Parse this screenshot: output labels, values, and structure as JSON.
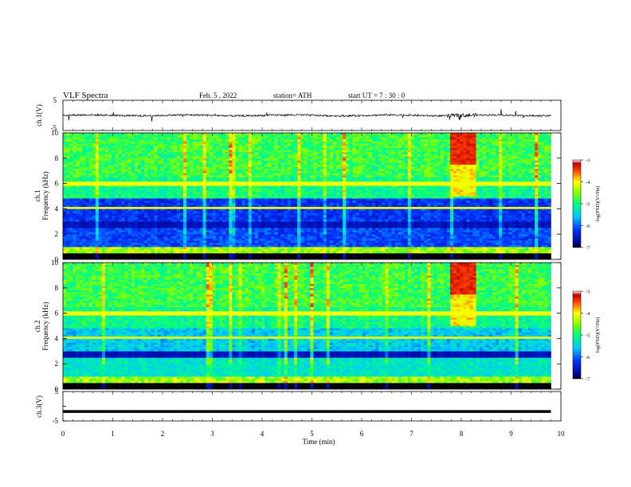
{
  "header": {
    "title": "VLF  Spectra",
    "date": "Feb. 5  , 2022",
    "station": "station= ATH",
    "start": "start  UT  =    7  : 30 : 0"
  },
  "chart_data": [
    {
      "type": "line",
      "name": "ch1-waveform",
      "ylabel": "ch.1(V)",
      "ylim": [
        -5,
        5
      ],
      "yticks": [
        5,
        -5
      ],
      "xlim": [
        0,
        10
      ],
      "trace_extent_min": 9.8
    },
    {
      "type": "heatmap",
      "name": "ch1-spectrogram",
      "ylabel": "ch.1\nFrequency (kHz)",
      "ylabel_lines": [
        "ch.1",
        "Frequency (kHz)"
      ],
      "ylim": [
        0,
        10
      ],
      "yticks": [
        0,
        2,
        4,
        6,
        8,
        10
      ],
      "xlim": [
        0,
        10
      ],
      "colorbar": {
        "label": "log(PSD)(V²/Hz)",
        "range": [
          -7,
          -3
        ],
        "ticks": [
          -3,
          -4,
          -5,
          -6,
          -7
        ]
      },
      "features": {
        "burst_time_min": [
          7.8,
          8.3
        ],
        "burst_freq_khz": [
          7.5,
          10
        ]
      }
    },
    {
      "type": "heatmap",
      "name": "ch2-spectrogram",
      "ylabel": "ch.2\nFrequency (kHz)",
      "ylabel_lines": [
        "ch.2",
        "Frequency (kHz)"
      ],
      "ylim": [
        0,
        10
      ],
      "yticks": [
        0,
        2,
        4,
        6,
        8,
        10
      ],
      "xlim": [
        0,
        10
      ],
      "colorbar": {
        "label": "log(PSD)(V²/Hz)",
        "range": [
          -7,
          -3
        ],
        "ticks": [
          -3,
          -4,
          -5,
          -6,
          -7
        ]
      },
      "features": {
        "burst_time_min": [
          7.8,
          8.3
        ],
        "burst_freq_khz": [
          7.5,
          10
        ]
      }
    },
    {
      "type": "line",
      "name": "ch3-waveform",
      "ylabel": "ch.3(V)",
      "ylim": [
        -5,
        5
      ],
      "yticks": [
        5,
        0,
        -5
      ],
      "ytick_labels": [
        "5",
        "0",
        "-5"
      ],
      "xlim": [
        0,
        10
      ],
      "xlabel": "Time  (min)",
      "xticks": [
        0,
        1,
        2,
        3,
        4,
        5,
        6,
        7,
        8,
        9,
        10
      ],
      "constant_level": -1.8
    }
  ],
  "colorbar_tick_labels": [
    "-3",
    "-4",
    "-5",
    "-6",
    "-7"
  ],
  "colorbar_label": "log(PSD)(V²/Hz)"
}
